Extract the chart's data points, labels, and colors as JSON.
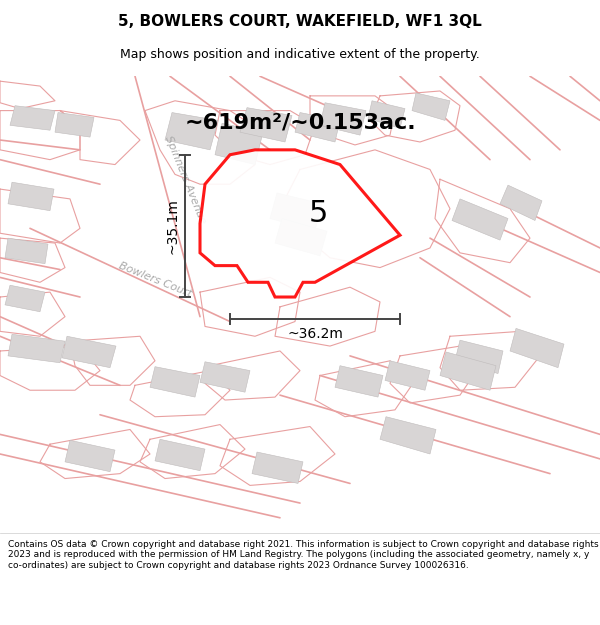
{
  "title": "5, BOWLERS COURT, WAKEFIELD, WF1 3QL",
  "subtitle": "Map shows position and indicative extent of the property.",
  "area_text": "~619m²/~0.153ac.",
  "label_number": "5",
  "dim_width": "~36.2m",
  "dim_height": "~35.1m",
  "footnote": "Contains OS data © Crown copyright and database right 2021. This information is subject to Crown copyright and database rights 2023 and is reproduced with the permission of HM Land Registry. The polygons (including the associated geometry, namely x, y co-ordinates) are subject to Crown copyright and database rights 2023 Ordnance Survey 100026316.",
  "bg_color": "#f2f0f0",
  "road_color": "#e8a0a0",
  "boundary_color": "#d08080",
  "building_color": "#d8d5d5",
  "building_edge": "#c0bcbc",
  "plot_color": "#ff0000",
  "plot_fill": "#ffffff",
  "street_label_spinners": "Spinners Avenue",
  "street_label_bowlers": "Bowlers Court",
  "title_fontsize": 11,
  "subtitle_fontsize": 9,
  "area_fontsize": 16,
  "dim_fontsize": 10
}
